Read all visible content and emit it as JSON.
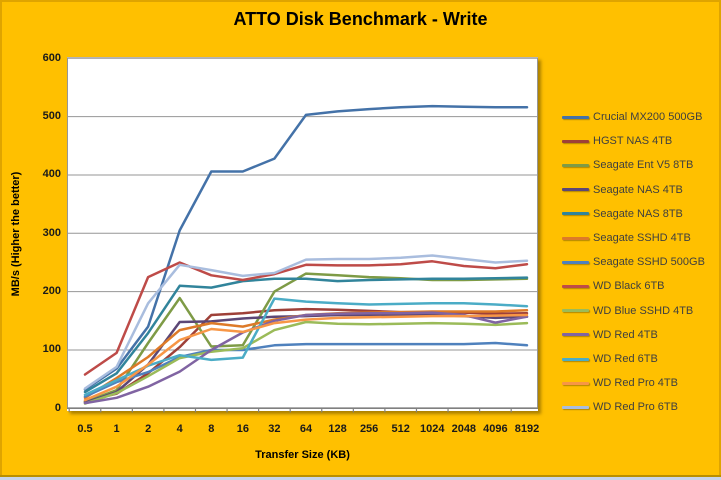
{
  "title": "ATTO Disk Benchmark - Write",
  "colors": {
    "background": "#FFC000",
    "plot_background": "#FFFFFF",
    "gridline": "#969696",
    "axis_line": "#808080",
    "title_text": "#000000",
    "legend_text": "#3F3F3F"
  },
  "chart_data": {
    "type": "line",
    "title": "ATTO Disk Benchmark - Write",
    "xlabel": "Transfer Size (KB)",
    "ylabel": "MB/s (Higher the better)",
    "ylim": [
      0,
      600
    ],
    "yticks": [
      0,
      100,
      200,
      300,
      400,
      500,
      600
    ],
    "grid": true,
    "legend_position": "right",
    "categories": [
      "0.5",
      "1",
      "2",
      "4",
      "8",
      "16",
      "32",
      "64",
      "128",
      "256",
      "512",
      "1024",
      "2048",
      "4096",
      "8192"
    ],
    "series": [
      {
        "name": "Crucial MX200 500GB",
        "color": "#4472A8",
        "values": [
          32,
          68,
          140,
          305,
          406,
          406,
          428,
          503,
          509,
          513,
          516,
          518,
          517,
          516,
          516
        ]
      },
      {
        "name": "HGST NAS 4TB",
        "color": "#9E4038",
        "values": [
          12,
          25,
          60,
          105,
          160,
          163,
          168,
          170,
          169,
          167,
          165,
          165,
          164,
          162,
          163
        ]
      },
      {
        "name": "Seagate Ent V5 8TB",
        "color": "#7E9B46",
        "values": [
          11,
          31,
          112,
          189,
          106,
          108,
          200,
          231,
          228,
          225,
          223,
          220,
          220,
          221,
          222
        ]
      },
      {
        "name": "Seagate NAS 4TB",
        "color": "#5C4776",
        "values": [
          10,
          28,
          75,
          148,
          149,
          154,
          157,
          158,
          160,
          160,
          160,
          160,
          158,
          155,
          157
        ]
      },
      {
        "name": "Seagate NAS 8TB",
        "color": "#31849B",
        "values": [
          28,
          60,
          129,
          210,
          207,
          218,
          222,
          222,
          218,
          220,
          221,
          222,
          222,
          223,
          224
        ]
      },
      {
        "name": "Seagate SSHD 4TB",
        "color": "#DD7A28",
        "values": [
          18,
          52,
          88,
          134,
          146,
          140,
          152,
          160,
          163,
          164,
          165,
          166,
          166,
          166,
          168
        ]
      },
      {
        "name": "Seagate SSHD 500GB",
        "color": "#4F81BD",
        "values": [
          20,
          45,
          62,
          88,
          100,
          100,
          108,
          110,
          110,
          110,
          110,
          110,
          110,
          112,
          108
        ]
      },
      {
        "name": "WD Black 6TB",
        "color": "#BE4B48",
        "values": [
          58,
          95,
          225,
          250,
          228,
          220,
          230,
          246,
          245,
          245,
          247,
          252,
          244,
          240,
          247
        ]
      },
      {
        "name": "WD Blue SSHD 4TB",
        "color": "#9BBB59",
        "values": [
          8,
          26,
          55,
          86,
          97,
          103,
          134,
          148,
          145,
          144,
          145,
          146,
          145,
          143,
          146
        ]
      },
      {
        "name": "WD Red 4TB",
        "color": "#8064A2",
        "values": [
          9,
          18,
          37,
          63,
          100,
          130,
          150,
          160,
          162,
          163,
          163,
          164,
          160,
          147,
          157
        ]
      },
      {
        "name": "WD Red 6TB",
        "color": "#4BACC6",
        "values": [
          23,
          48,
          73,
          91,
          83,
          87,
          188,
          183,
          180,
          178,
          179,
          180,
          180,
          178,
          175
        ]
      },
      {
        "name": "WD Red Pro 4TB",
        "color": "#F79646",
        "values": [
          14,
          37,
          75,
          117,
          136,
          131,
          146,
          152,
          155,
          156,
          157,
          158,
          158,
          159,
          160
        ]
      },
      {
        "name": "WD Red Pro 6TB",
        "color": "#A9BDDE",
        "values": [
          34,
          71,
          180,
          246,
          237,
          227,
          232,
          255,
          256,
          256,
          258,
          262,
          256,
          250,
          253
        ]
      }
    ]
  }
}
